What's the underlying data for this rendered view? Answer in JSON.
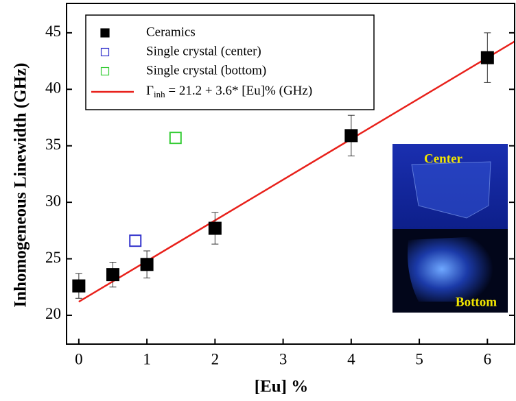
{
  "chart_data": {
    "type": "scatter",
    "x_label": "[Eu] %",
    "y_label": "Inhomogeneous Linewidth  (GHz)",
    "xlim": [
      -0.18,
      6.42
    ],
    "ylim": [
      17.45,
      47.6
    ],
    "xticks": [
      0,
      1,
      2,
      3,
      4,
      5,
      6
    ],
    "yticks": [
      20,
      25,
      30,
      35,
      40,
      45
    ],
    "series": [
      {
        "name": "Ceramics",
        "color": "#000000",
        "marker": "filled-square",
        "x": [
          0,
          0.5,
          1,
          2,
          4,
          6
        ],
        "values": [
          22.6,
          23.6,
          24.5,
          27.7,
          35.9,
          42.8
        ],
        "errors": [
          1.1,
          1.1,
          1.2,
          1.4,
          1.8,
          2.2
        ]
      },
      {
        "name": "Single crystal (center)",
        "color": "#3333cc",
        "marker": "open-square",
        "x": [
          0.83
        ],
        "values": [
          26.6
        ]
      },
      {
        "name": "Single crystal (bottom)",
        "color": "#33cc33",
        "marker": "open-square",
        "x": [
          1.42
        ],
        "values": [
          35.7
        ]
      }
    ],
    "fit": {
      "symbol": "Γ",
      "subscript": "inh",
      "rest": " = 21.2 + 3.6* [Eu]% (GHz)",
      "intercept": 21.2,
      "slope": 3.6,
      "x_range": [
        0,
        6.42
      ],
      "color": "#e8201a"
    },
    "inset": {
      "labels": [
        "Center",
        "Bottom"
      ]
    }
  }
}
